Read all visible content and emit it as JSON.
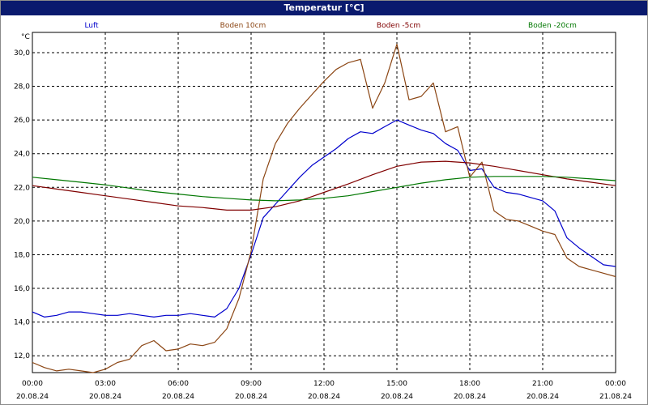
{
  "window": {
    "title": "Temperatur [°C]"
  },
  "chart_data": {
    "type": "line",
    "title": "Temperatur [°C]",
    "ylabel": "°C",
    "xlabel": "",
    "ylim": [
      11.0,
      31.2
    ],
    "xlim": [
      0,
      24
    ],
    "grid": true,
    "legend_placement": "top",
    "y_ticks": [
      "12,0",
      "14,0",
      "16,0",
      "18,0",
      "20,0",
      "22,0",
      "24,0",
      "26,0",
      "28,0",
      "30,0"
    ],
    "y_tick_values": [
      12,
      14,
      16,
      18,
      20,
      22,
      24,
      26,
      28,
      30
    ],
    "x_ticks": [
      {
        "value": 0,
        "time": "00:00",
        "date": "20.08.24"
      },
      {
        "value": 3,
        "time": "03:00",
        "date": "20.08.24"
      },
      {
        "value": 6,
        "time": "06:00",
        "date": "20.08.24"
      },
      {
        "value": 9,
        "time": "09:00",
        "date": "20.08.24"
      },
      {
        "value": 12,
        "time": "12:00",
        "date": "20.08.24"
      },
      {
        "value": 15,
        "time": "15:00",
        "date": "20.08.24"
      },
      {
        "value": 18,
        "time": "18:00",
        "date": "20.08.24"
      },
      {
        "value": 21,
        "time": "21:00",
        "date": "20.08.24"
      },
      {
        "value": 24,
        "time": "00:00",
        "date": "21.08.24"
      }
    ],
    "series": [
      {
        "name": "Luft",
        "color": "#0000cc",
        "x": [
          0,
          0.5,
          1,
          1.5,
          2,
          2.5,
          3,
          3.5,
          4,
          4.5,
          5,
          5.5,
          6,
          6.5,
          7,
          7.5,
          8,
          8.5,
          9,
          9.5,
          10,
          10.5,
          11,
          11.5,
          12,
          12.5,
          13,
          13.5,
          14,
          14.5,
          15,
          15.5,
          16,
          16.5,
          17,
          17.5,
          18,
          18.5,
          19,
          19.5,
          20,
          20.5,
          21,
          21.5,
          22,
          22.5,
          23,
          23.5,
          24
        ],
        "values": [
          14.6,
          14.3,
          14.4,
          14.6,
          14.6,
          14.5,
          14.4,
          14.4,
          14.5,
          14.4,
          14.3,
          14.4,
          14.4,
          14.5,
          14.4,
          14.3,
          14.8,
          16.0,
          18.0,
          20.2,
          21.0,
          21.8,
          22.6,
          23.3,
          23.8,
          24.3,
          24.9,
          25.3,
          25.2,
          25.6,
          26.0,
          25.7,
          25.4,
          25.2,
          24.6,
          24.2,
          23.0,
          23.1,
          22.0,
          21.7,
          21.6,
          21.4,
          21.2,
          20.6,
          19.0,
          18.4,
          17.9,
          17.4,
          17.3
        ]
      },
      {
        "name": "Boden 10cm",
        "color": "#8b4513",
        "x": [
          0,
          0.5,
          1,
          1.5,
          2,
          2.5,
          3,
          3.5,
          4,
          4.5,
          5,
          5.5,
          6,
          6.5,
          7,
          7.5,
          8,
          8.5,
          9,
          9.5,
          10,
          10.5,
          11,
          11.5,
          12,
          12.5,
          13,
          13.5,
          14,
          14.5,
          15,
          15.5,
          16,
          16.5,
          17,
          17.5,
          18,
          18.5,
          19,
          19.5,
          20,
          20.5,
          21,
          21.5,
          22,
          22.5,
          23,
          23.5,
          24
        ],
        "values": [
          11.6,
          11.3,
          11.1,
          11.2,
          11.1,
          11.0,
          11.2,
          11.6,
          11.8,
          12.6,
          12.9,
          12.3,
          12.4,
          12.7,
          12.6,
          12.8,
          13.6,
          15.4,
          18.2,
          22.5,
          24.6,
          25.8,
          26.7,
          27.5,
          28.3,
          29.0,
          29.4,
          29.6,
          26.7,
          28.2,
          30.5,
          27.2,
          27.4,
          28.2,
          25.3,
          25.6,
          22.6,
          23.5,
          20.6,
          20.1,
          20.0,
          19.7,
          19.4,
          19.2,
          17.8,
          17.3,
          17.1,
          16.9,
          16.7
        ]
      },
      {
        "name": "Boden -5cm",
        "color": "#800000",
        "x": [
          0,
          1,
          2,
          3,
          4,
          5,
          6,
          7,
          8,
          9,
          10,
          11,
          12,
          13,
          14,
          15,
          16,
          17,
          18,
          19,
          20,
          21,
          22,
          23,
          24
        ],
        "values": [
          22.1,
          21.9,
          21.7,
          21.5,
          21.3,
          21.1,
          20.9,
          20.8,
          20.65,
          20.65,
          20.85,
          21.2,
          21.7,
          22.2,
          22.75,
          23.25,
          23.5,
          23.55,
          23.45,
          23.25,
          23.0,
          22.75,
          22.5,
          22.3,
          22.1
        ]
      },
      {
        "name": "Boden -20cm",
        "color": "#007700",
        "x": [
          0,
          1,
          2,
          3,
          4,
          5,
          6,
          7,
          8,
          9,
          10,
          11,
          12,
          13,
          14,
          15,
          16,
          17,
          18,
          19,
          20,
          21,
          22,
          23,
          24
        ],
        "values": [
          22.6,
          22.45,
          22.3,
          22.15,
          21.95,
          21.75,
          21.6,
          21.45,
          21.35,
          21.25,
          21.2,
          21.25,
          21.35,
          21.5,
          21.75,
          22.0,
          22.25,
          22.45,
          22.6,
          22.65,
          22.65,
          22.65,
          22.6,
          22.5,
          22.4
        ]
      }
    ]
  }
}
